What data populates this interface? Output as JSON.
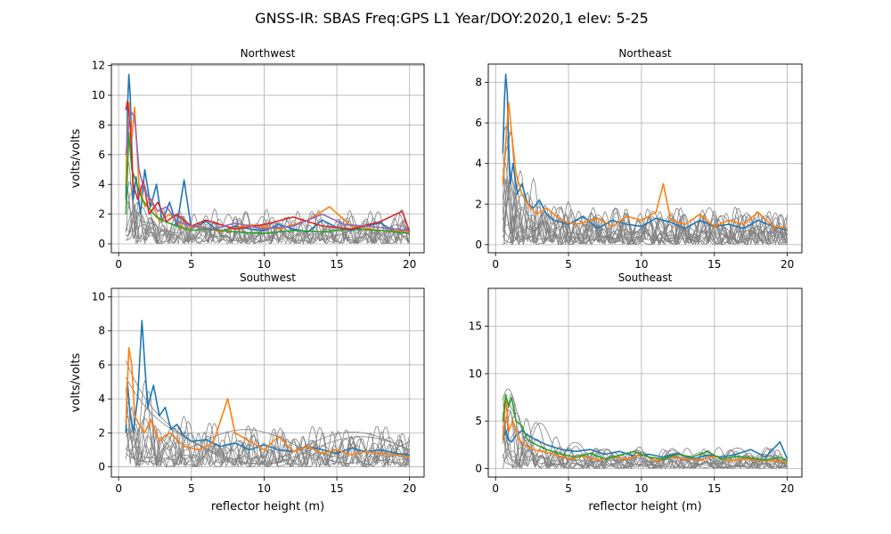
{
  "figure": {
    "suptitle": "GNSS-IR: SBAS Freq:GPS L1 Year/DOY:2020,1 elev: 5-25"
  },
  "chart_data": [
    {
      "type": "line",
      "title": "Northwest",
      "xlabel": "",
      "ylabel": "volts/volts",
      "xlim": [
        -0.5,
        21
      ],
      "ylim": [
        -0.6,
        12.1
      ],
      "xticks": [
        0,
        5,
        10,
        15,
        20
      ],
      "yticks": [
        0,
        2,
        4,
        6,
        8,
        10,
        12
      ],
      "grid": true,
      "gray_traces": 12,
      "series": [
        {
          "color": "#1f77b4",
          "x": [
            0.5,
            0.6,
            0.7,
            0.8,
            0.9,
            1.0,
            1.2,
            1.5,
            1.8,
            2.2,
            2.6,
            3.0,
            3.5,
            4.0,
            4.5,
            5.0,
            6,
            7,
            8,
            9,
            10,
            11,
            12,
            13,
            14,
            15,
            16,
            17,
            18,
            19,
            20
          ],
          "y": [
            3.0,
            9.0,
            11.4,
            10.0,
            6.5,
            3.0,
            4.5,
            2.0,
            5.0,
            2.5,
            4.0,
            1.5,
            2.8,
            1.2,
            4.3,
            1.0,
            1.5,
            0.8,
            1.2,
            1.0,
            0.9,
            1.3,
            1.0,
            0.8,
            1.6,
            1.1,
            0.9,
            1.2,
            1.4,
            0.8,
            1.0
          ]
        },
        {
          "color": "#ff7f0e",
          "x": [
            0.5,
            0.7,
            0.9,
            1.1,
            1.4,
            1.8,
            2.2,
            2.8,
            3.5,
            4.5,
            5.5,
            7,
            9,
            11,
            13,
            14.5,
            16,
            18,
            20
          ],
          "y": [
            4.0,
            9.5,
            7.0,
            9.2,
            4.0,
            2.5,
            3.0,
            1.5,
            2.0,
            1.0,
            1.2,
            0.8,
            1.3,
            1.0,
            1.6,
            2.5,
            1.2,
            0.9,
            0.8
          ]
        },
        {
          "color": "#2ca02c",
          "x": [
            0.5,
            0.7,
            0.9,
            1.2,
            1.6,
            2.0,
            2.6,
            3.2,
            4,
            5,
            6,
            8,
            10,
            12,
            14,
            16,
            18,
            20
          ],
          "y": [
            2.0,
            7.5,
            5.0,
            4.2,
            3.0,
            2.5,
            1.8,
            1.5,
            1.2,
            0.9,
            1.0,
            0.8,
            0.7,
            0.9,
            0.8,
            1.0,
            0.9,
            0.7
          ]
        },
        {
          "color": "#d62728",
          "x": [
            0.5,
            0.6,
            0.8,
            1.0,
            1.3,
            1.7,
            2.1,
            2.7,
            3.3,
            4,
            5,
            6,
            8,
            10,
            12,
            14,
            16,
            18,
            19.5,
            20
          ],
          "y": [
            9.0,
            9.6,
            8.0,
            4.0,
            3.0,
            4.2,
            2.0,
            2.8,
            1.5,
            2.0,
            1.2,
            1.6,
            1.0,
            1.3,
            1.8,
            1.2,
            1.0,
            1.5,
            2.2,
            0.8
          ]
        },
        {
          "color": "#9467bd",
          "x": [
            0.5,
            0.8,
            1.1,
            1.4,
            1.8,
            2.2,
            2.7,
            3.3,
            4,
            5,
            6.5,
            8,
            10,
            12,
            14,
            15.5,
            17,
            19,
            20
          ],
          "y": [
            6.0,
            9.0,
            8.5,
            5.0,
            3.5,
            3.0,
            2.2,
            2.5,
            1.5,
            1.2,
            1.0,
            1.4,
            1.0,
            1.2,
            2.0,
            1.3,
            1.2,
            1.0,
            0.9
          ]
        }
      ]
    },
    {
      "type": "line",
      "title": "Northeast",
      "xlabel": "",
      "ylabel": "",
      "xlim": [
        -0.5,
        21
      ],
      "ylim": [
        -0.4,
        8.9
      ],
      "xticks": [
        0,
        5,
        10,
        15,
        20
      ],
      "yticks": [
        0,
        2,
        4,
        6,
        8
      ],
      "grid": true,
      "gray_traces": 16,
      "series": [
        {
          "color": "#1f77b4",
          "x": [
            0.5,
            0.6,
            0.7,
            0.8,
            0.9,
            1.0,
            1.2,
            1.5,
            1.8,
            2.2,
            2.6,
            3.0,
            3.5,
            4,
            5,
            6,
            7,
            8,
            9,
            10,
            11,
            12,
            13,
            14,
            15,
            16,
            17,
            18,
            19,
            20
          ],
          "y": [
            4.5,
            7.0,
            8.4,
            7.5,
            5.0,
            3.0,
            4.0,
            2.5,
            3.0,
            2.0,
            1.8,
            2.2,
            1.5,
            1.2,
            1.0,
            1.4,
            0.8,
            1.2,
            1.0,
            0.9,
            1.3,
            1.1,
            0.8,
            1.2,
            0.9,
            1.0,
            0.8,
            1.2,
            0.9,
            0.7
          ]
        },
        {
          "color": "#ff7f0e",
          "x": [
            0.5,
            0.7,
            0.9,
            1.1,
            1.4,
            1.8,
            2.2,
            2.8,
            3.5,
            4.5,
            5.5,
            7,
            8,
            9,
            10,
            11,
            11.5,
            12,
            13,
            14,
            15,
            16,
            17,
            18,
            19,
            20
          ],
          "y": [
            3.0,
            5.0,
            7.0,
            5.5,
            3.5,
            2.5,
            2.0,
            1.5,
            1.8,
            1.2,
            1.0,
            1.3,
            0.9,
            1.4,
            1.2,
            1.6,
            3.0,
            1.2,
            1.0,
            1.5,
            0.9,
            1.2,
            1.0,
            1.6,
            0.9,
            0.8
          ]
        }
      ]
    },
    {
      "type": "line",
      "title": "Southwest",
      "xlabel": "reflector height (m)",
      "ylabel": "volts/volts",
      "xlim": [
        -0.5,
        21
      ],
      "ylim": [
        -0.6,
        10.5
      ],
      "xticks": [
        0,
        5,
        10,
        15,
        20
      ],
      "yticks": [
        0,
        2,
        4,
        6,
        8,
        10
      ],
      "grid": true,
      "gray_traces": 14,
      "series": [
        {
          "color": "#1f77b4",
          "x": [
            0.5,
            0.6,
            0.8,
            1.0,
            1.3,
            1.6,
            1.8,
            2.0,
            2.4,
            2.8,
            3.2,
            3.6,
            4,
            4.5,
            5,
            6,
            7,
            8,
            9,
            10,
            11,
            12,
            13,
            14,
            15,
            16,
            17,
            18,
            19,
            20
          ],
          "y": [
            2.0,
            5.0,
            3.0,
            2.0,
            4.0,
            8.6,
            6.0,
            3.5,
            4.8,
            3.0,
            3.5,
            2.2,
            2.5,
            1.8,
            1.5,
            1.6,
            1.2,
            1.4,
            1.0,
            1.3,
            1.0,
            0.9,
            1.2,
            1.0,
            0.8,
            1.1,
            0.9,
            1.0,
            0.8,
            0.7
          ]
        },
        {
          "color": "#ff7f0e",
          "x": [
            0.5,
            0.7,
            0.9,
            1.1,
            1.4,
            1.8,
            2.2,
            2.8,
            3.5,
            4.5,
            5.5,
            6.5,
            7.5,
            8,
            9,
            10,
            11,
            12,
            13,
            14,
            15,
            16,
            17,
            18,
            19,
            20
          ],
          "y": [
            2.5,
            7.0,
            6.0,
            3.0,
            2.5,
            2.0,
            2.8,
            1.5,
            2.0,
            1.2,
            1.0,
            1.4,
            4.0,
            2.0,
            1.5,
            1.0,
            1.8,
            0.9,
            1.2,
            0.8,
            1.0,
            0.7,
            0.9,
            0.8,
            0.7,
            0.6
          ]
        }
      ]
    },
    {
      "type": "line",
      "title": "Southeast",
      "xlabel": "reflector height (m)",
      "ylabel": "",
      "xlim": [
        -0.5,
        21
      ],
      "ylim": [
        -0.9,
        19.0
      ],
      "xticks": [
        0,
        5,
        10,
        15,
        20
      ],
      "yticks": [
        0,
        5,
        10,
        15
      ],
      "grid": true,
      "gray_traces": 14,
      "series": [
        {
          "color": "#1f77b4",
          "x": [
            0.5,
            0.7,
            0.9,
            1.1,
            1.4,
            1.8,
            2.2,
            2.8,
            3.5,
            4.5,
            5.5,
            6.5,
            7.5,
            8.5,
            9.5,
            10.5,
            11.5,
            12.5,
            13.5,
            14.5,
            15.5,
            16.5,
            17.5,
            18.5,
            19.5,
            20
          ],
          "y": [
            3.0,
            4.0,
            3.0,
            2.8,
            3.5,
            4.0,
            3.5,
            3.0,
            2.5,
            2.0,
            1.8,
            2.0,
            1.5,
            1.8,
            1.3,
            1.5,
            1.2,
            1.6,
            1.0,
            1.4,
            1.2,
            1.5,
            2.0,
            1.2,
            2.8,
            1.0
          ]
        },
        {
          "color": "#ff7f0e",
          "x": [
            0.5,
            0.7,
            0.9,
            1.2,
            1.6,
            2.0,
            2.6,
            3.2,
            4,
            5,
            6,
            7,
            8,
            9,
            10,
            11,
            12,
            13,
            14,
            15,
            16,
            17,
            18,
            19,
            20
          ],
          "y": [
            3.0,
            7.5,
            4.0,
            5.0,
            3.0,
            2.5,
            2.0,
            1.8,
            1.5,
            1.0,
            1.3,
            0.9,
            1.2,
            1.0,
            1.5,
            0.8,
            1.2,
            1.0,
            0.9,
            1.3,
            0.8,
            1.0,
            0.9,
            0.8,
            0.7
          ]
        },
        {
          "color": "#2ca02c",
          "x": [
            0.5,
            0.7,
            0.9,
            1.1,
            1.4,
            1.8,
            2.2,
            2.8,
            3.5,
            4.5,
            5.5,
            6.5,
            7.5,
            8.5,
            9.5,
            10.5,
            11.5,
            12.5,
            13.5,
            14.5,
            15.5,
            16.5,
            17.5,
            18.5,
            19.5,
            20
          ],
          "y": [
            5.0,
            7.8,
            6.5,
            7.5,
            5.0,
            4.5,
            3.0,
            2.5,
            2.0,
            1.5,
            1.2,
            1.6,
            1.0,
            1.4,
            1.8,
            1.2,
            1.0,
            1.5,
            1.2,
            1.8,
            1.0,
            1.3,
            1.1,
            0.9,
            1.2,
            0.8
          ]
        }
      ]
    }
  ]
}
